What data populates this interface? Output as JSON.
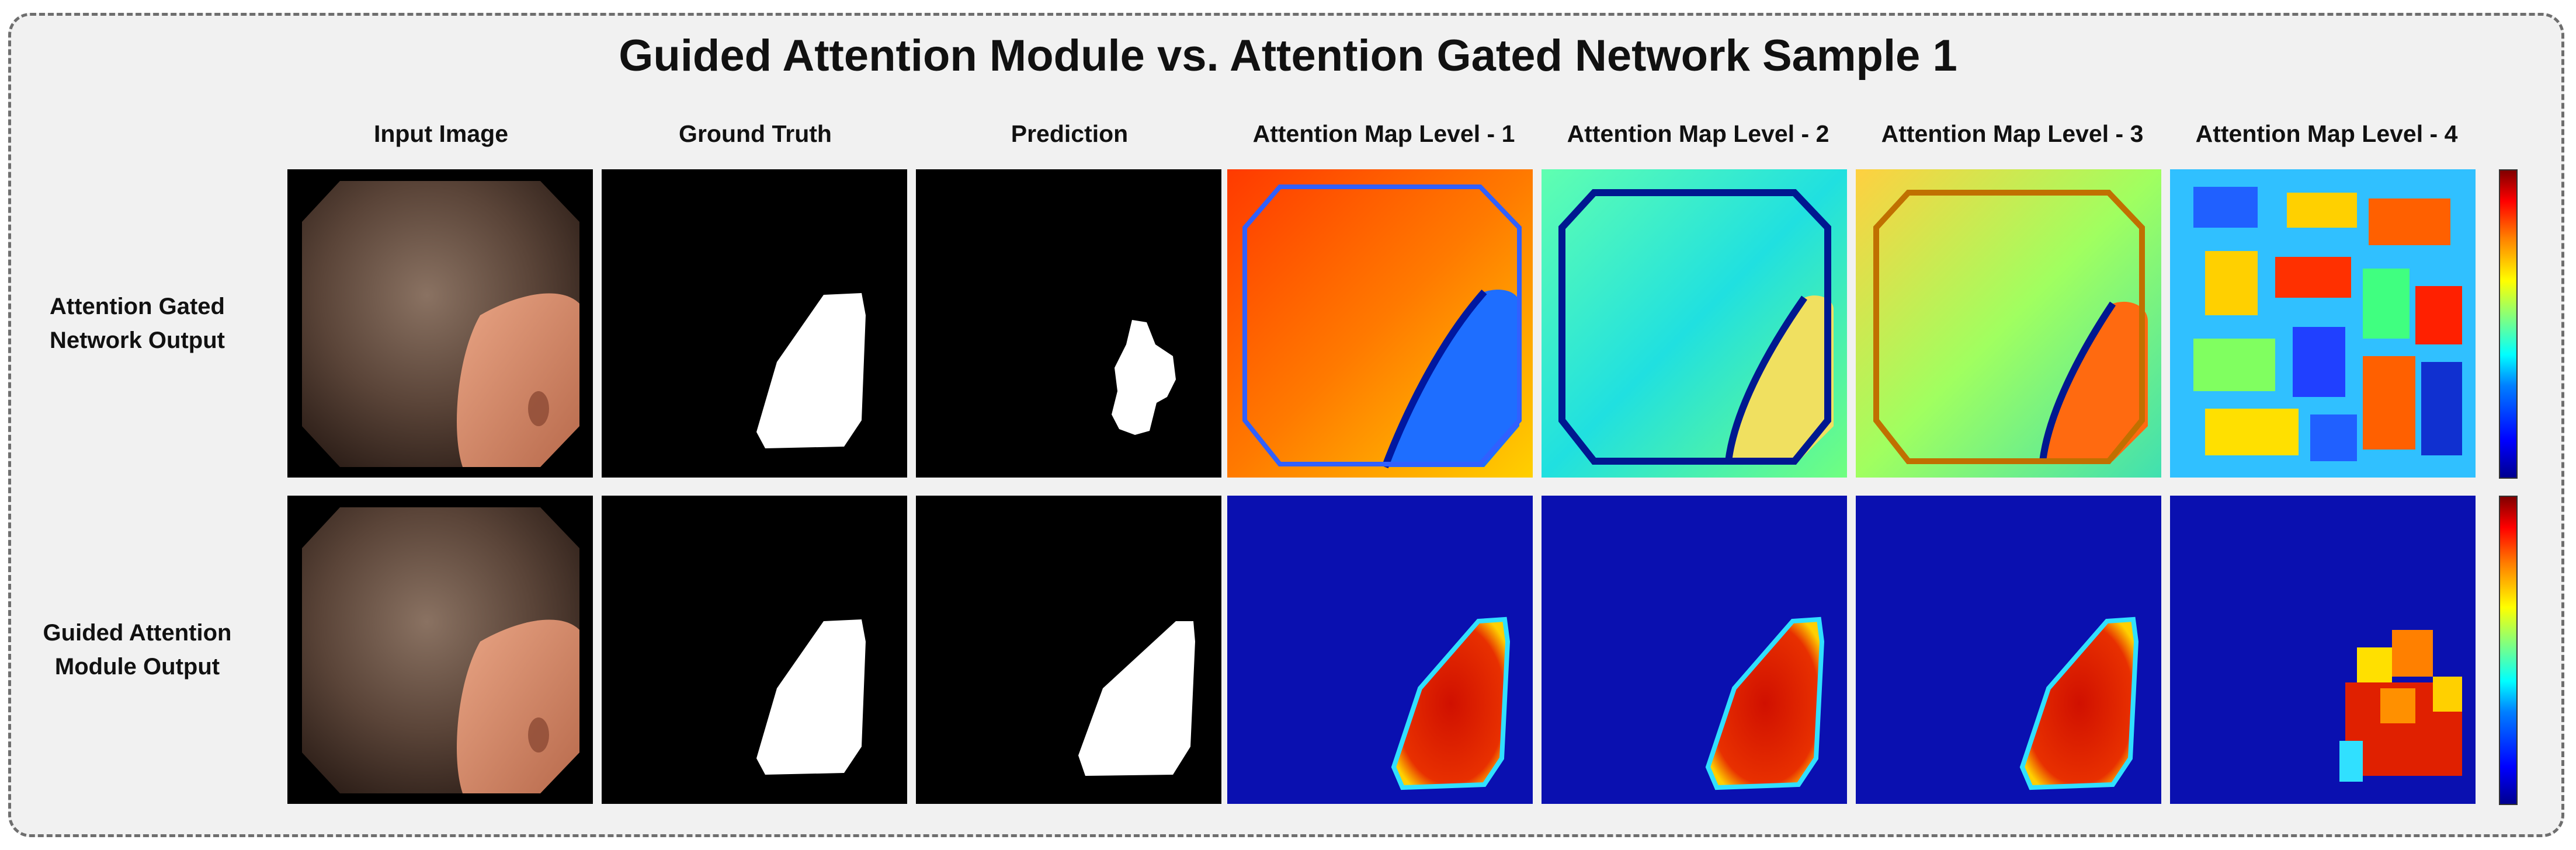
{
  "title": "Guided Attention Module vs. Attention Gated Network Sample 1",
  "columns": [
    "Input Image",
    "Ground Truth",
    "Prediction",
    "Attention Map Level - 1",
    "Attention Map Level - 2",
    "Attention Map Level - 3",
    "Attention Map Level - 4"
  ],
  "rows": [
    {
      "label_line1": "Attention Gated",
      "label_line2": "Network Output"
    },
    {
      "label_line1": "Guided Attention",
      "label_line2": "Module Output"
    }
  ],
  "colormap": "jet"
}
